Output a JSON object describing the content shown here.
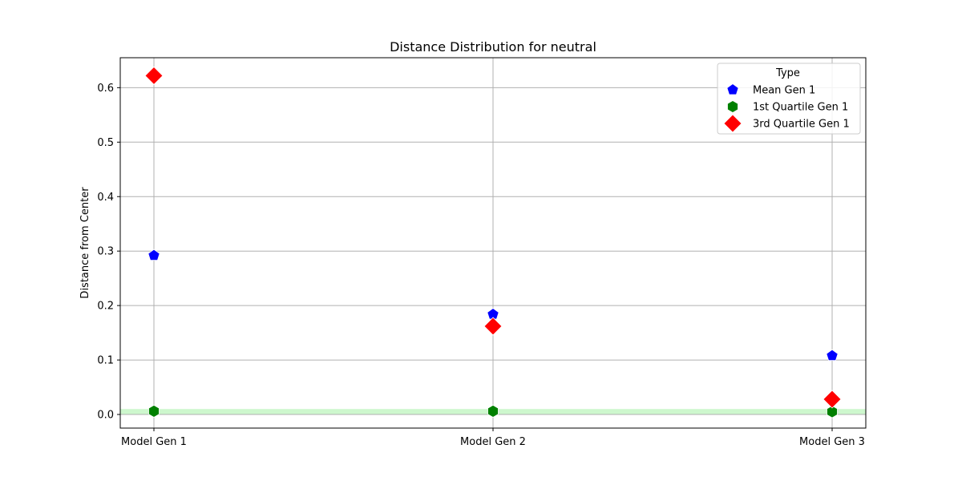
{
  "chart_data": {
    "type": "scatter",
    "title": "Distance Distribution for neutral",
    "xlabel": "",
    "ylabel": "Distance from Center",
    "categories": [
      "Model Gen 1",
      "Model Gen 2",
      "Model Gen 3"
    ],
    "ylim": [
      -0.025,
      0.655
    ],
    "yticks": [
      0.0,
      0.1,
      0.2,
      0.3,
      0.4,
      0.5,
      0.6
    ],
    "ytick_labels": [
      "0.0",
      "0.1",
      "0.2",
      "0.3",
      "0.4",
      "0.5",
      "0.6"
    ],
    "grid": true,
    "legend": {
      "title": "Type",
      "placement": "top-right"
    },
    "reference_band": {
      "y_from": 0.0,
      "y_to": 0.01,
      "color": "#90ee90"
    },
    "series": [
      {
        "name": "Mean Gen 1",
        "marker": "pentagon",
        "color": "#0000ff",
        "values": [
          0.292,
          0.184,
          0.108
        ]
      },
      {
        "name": "1st Quartile Gen 1",
        "marker": "hexagon",
        "color": "#008000",
        "values": [
          0.006,
          0.006,
          0.005
        ]
      },
      {
        "name": "3rd Quartile Gen 1",
        "marker": "diamond",
        "color": "#ff0000",
        "values": [
          0.622,
          0.162,
          0.028
        ]
      }
    ]
  }
}
